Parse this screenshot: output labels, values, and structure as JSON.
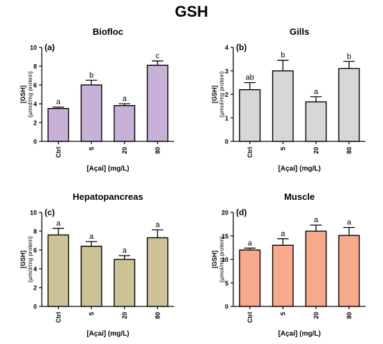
{
  "figure_title": "GSH",
  "chart_data": [
    {
      "type": "bar",
      "panel_label": "(a)",
      "title": "Biofloc",
      "ylabel": "[GSH]",
      "ylabel_unit": "(µmol/mg protein)",
      "xlabel": "[Açaí] (mg/L)",
      "categories": [
        "Ctrl",
        "5",
        "20",
        "80"
      ],
      "series": [
        {
          "values": [
            3.5,
            6.0,
            3.8,
            8.1
          ],
          "errors": [
            0.15,
            0.5,
            0.2,
            0.45
          ]
        }
      ],
      "letters": [
        "a",
        "b",
        "a",
        "c"
      ],
      "ylim": [
        0,
        10
      ],
      "yticks": [
        "0",
        "2",
        "4",
        "6",
        "8",
        "10"
      ],
      "bar_color": "#c8b1d6",
      "grid": false
    },
    {
      "type": "bar",
      "panel_label": "(b)",
      "title": "Gills",
      "ylabel": "[GSH]",
      "ylabel_unit": "(µmol/mg protein)",
      "xlabel": "[Açaí] (mg/L)",
      "categories": [
        "Ctrl",
        "5",
        "20",
        "80"
      ],
      "series": [
        {
          "values": [
            2.2,
            3.0,
            1.68,
            3.1
          ],
          "errors": [
            0.3,
            0.45,
            0.22,
            0.3
          ]
        }
      ],
      "letters": [
        "ab",
        "b",
        "a",
        "b"
      ],
      "ylim": [
        0,
        4
      ],
      "yticks": [
        "0",
        "1",
        "2",
        "3",
        "4"
      ],
      "bar_color": "#d7d7d7",
      "grid": false
    },
    {
      "type": "bar",
      "panel_label": "(c)",
      "title": "Hepatopancreas",
      "ylabel": "[GSH]",
      "ylabel_unit": "(µmol/mg protein)",
      "xlabel": "[Açaí] (mg/L)",
      "categories": [
        "Ctrl",
        "5",
        "20",
        "80"
      ],
      "series": [
        {
          "values": [
            7.6,
            6.4,
            5.0,
            7.3
          ],
          "errors": [
            0.7,
            0.5,
            0.4,
            0.85
          ]
        }
      ],
      "letters": [
        "a",
        "a",
        "a",
        "a"
      ],
      "ylim": [
        0,
        10
      ],
      "yticks": [
        "0",
        "2",
        "4",
        "6",
        "8",
        "10"
      ],
      "bar_color": "#cdc396",
      "grid": false
    },
    {
      "type": "bar",
      "panel_label": "(d)",
      "title": "Muscle",
      "ylabel": "[GSH]",
      "ylabel_unit": "(µmol/mg protein)",
      "xlabel": "[Açaí] (mg/L)",
      "categories": [
        "Ctrl",
        "5",
        "20",
        "80"
      ],
      "series": [
        {
          "values": [
            12.0,
            13.0,
            16.0,
            15.1
          ],
          "errors": [
            0.4,
            1.4,
            1.3,
            1.7
          ]
        }
      ],
      "letters": [
        "a",
        "a",
        "a",
        "a"
      ],
      "ylim": [
        0,
        20
      ],
      "yticks": [
        "0",
        "5",
        "10",
        "15",
        "20"
      ],
      "bar_color": "#f7a98b",
      "grid": false
    }
  ]
}
